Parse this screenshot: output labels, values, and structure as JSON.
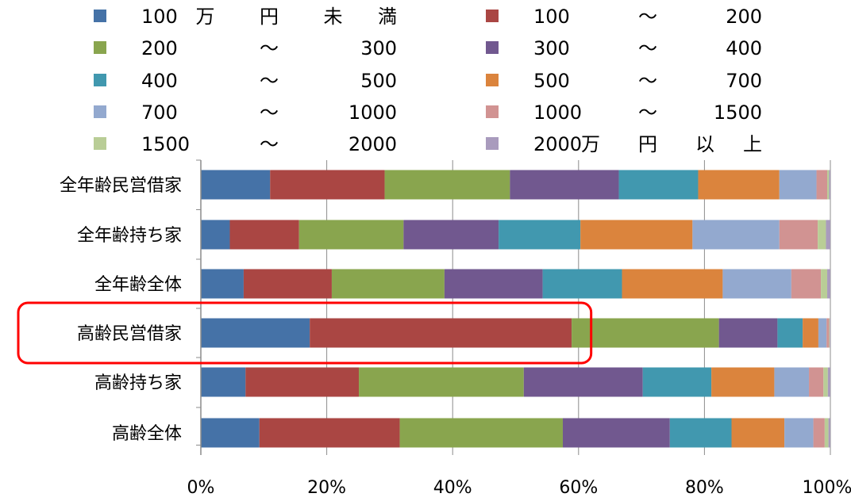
{
  "chart_data": {
    "type": "bar",
    "orientation": "horizontal",
    "stacked": "percent",
    "categories": [
      "全年齢民営借家",
      "全年齢持ち家",
      "全年齢全体",
      "高齢民営借家",
      "高齢持ち家",
      "高齢全体"
    ],
    "legend": [
      {
        "name": "100万円未満",
        "parts": [
          "100",
          "万",
          "円",
          "未",
          "満"
        ]
      },
      {
        "name": "100～200",
        "parts": [
          "100",
          "～",
          "200"
        ]
      },
      {
        "name": "200～300",
        "parts": [
          "200",
          "～",
          "300"
        ]
      },
      {
        "name": "300～400",
        "parts": [
          "300",
          "～",
          "400"
        ]
      },
      {
        "name": "400～500",
        "parts": [
          "400",
          "～",
          "500"
        ]
      },
      {
        "name": "500～700",
        "parts": [
          "500",
          "～",
          "700"
        ]
      },
      {
        "name": "700～1000",
        "parts": [
          "700",
          "～",
          "1000"
        ]
      },
      {
        "name": "1000～1500",
        "parts": [
          "1000",
          "～",
          "1500"
        ]
      },
      {
        "name": "1500～2000",
        "parts": [
          "1500",
          "～",
          "2000"
        ]
      },
      {
        "name": "2000万円以上",
        "parts": [
          "2000",
          "万",
          "円",
          "以",
          "上"
        ]
      }
    ],
    "series": [
      {
        "name": "100万円未満",
        "color": "#4572A7",
        "values": [
          11.0,
          4.6,
          6.8,
          17.3,
          7.1,
          9.3
        ]
      },
      {
        "name": "100～200",
        "color": "#AA4643",
        "values": [
          18.2,
          11.0,
          14.0,
          41.6,
          18.0,
          22.3
        ]
      },
      {
        "name": "200～300",
        "color": "#89A54E",
        "values": [
          19.9,
          16.6,
          17.9,
          23.4,
          26.2,
          25.9
        ]
      },
      {
        "name": "300～400",
        "color": "#71588F",
        "values": [
          17.3,
          15.1,
          15.6,
          9.3,
          18.9,
          17.0
        ]
      },
      {
        "name": "400～500",
        "color": "#4198AF",
        "values": [
          12.6,
          13.0,
          12.6,
          4.0,
          10.9,
          9.8
        ]
      },
      {
        "name": "500～700",
        "color": "#DB843D",
        "values": [
          12.9,
          17.8,
          16.0,
          2.5,
          10.0,
          8.4
        ]
      },
      {
        "name": "700～1000",
        "color": "#93A9CF",
        "values": [
          5.9,
          13.8,
          10.9,
          1.3,
          5.5,
          4.6
        ]
      },
      {
        "name": "1000～1500",
        "color": "#D19392",
        "values": [
          1.7,
          6.1,
          4.7,
          0.4,
          2.3,
          1.8
        ]
      },
      {
        "name": "1500～2000",
        "color": "#B9CD96",
        "values": [
          0.3,
          1.3,
          1.0,
          0.1,
          0.7,
          0.6
        ]
      },
      {
        "name": "2000万円以上",
        "color": "#A99BBD",
        "values": [
          0.2,
          0.7,
          0.5,
          0.1,
          0.4,
          0.3
        ]
      }
    ],
    "xlim": [
      0,
      100
    ],
    "xticks": [
      "0%",
      "20%",
      "40%",
      "60%",
      "80%",
      "100%"
    ],
    "grid": "vertical",
    "legend_position": "top",
    "highlight": {
      "category": "高齢民営借家",
      "color": "#FF0000",
      "extent_percent": 62
    }
  }
}
